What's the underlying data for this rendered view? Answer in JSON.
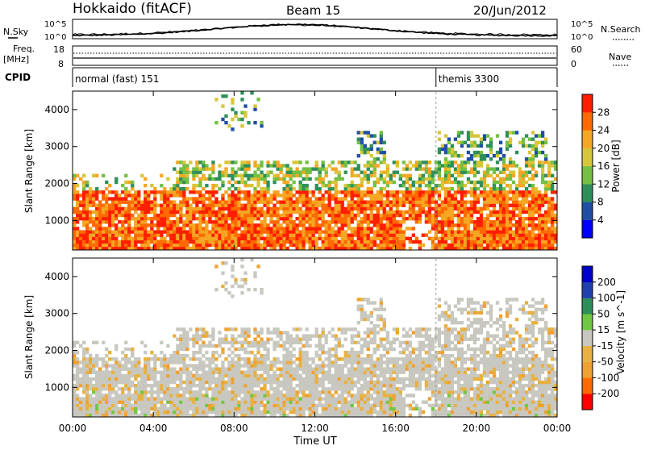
{
  "header": {
    "station": "Hokkaido (fitACF)",
    "beam": "Beam 15",
    "date": "20/Jun/2012"
  },
  "side_labels": {
    "nsky": "N.Sky",
    "freq": "Freq.",
    "freq_unit": "[MHz]",
    "cpid": "CPID",
    "nsearch": "N.Search",
    "nave": "Nave"
  },
  "nsky_axis": {
    "top": "10^5",
    "bottom": "10^0"
  },
  "freq_axis": {
    "top": "18",
    "bottom": "8"
  },
  "nave_axis": {
    "top": "60",
    "bottom": "0"
  },
  "cpid": [
    {
      "label": "normal (fast) 151",
      "start_hour": 0
    },
    {
      "label": "themis 3300",
      "start_hour": 18
    }
  ],
  "chart_data": [
    {
      "type": "heatmap",
      "name": "power",
      "ylabel": "Slant Range [km]",
      "yticks": [
        "1000",
        "2000",
        "3000",
        "4000"
      ],
      "ylim": [
        200,
        4500
      ],
      "colorbar_label": "Power [dB]",
      "colorbar_ticks": [
        "4",
        "8",
        "12",
        "16",
        "20",
        "24",
        "28"
      ],
      "colorbar_range": [
        0,
        32
      ],
      "colors": [
        "#0000ff",
        "#1f4ea6",
        "#2f8f5a",
        "#73c043",
        "#d8c63a",
        "#f5a623",
        "#ff6a00",
        "#ff1e00"
      ]
    },
    {
      "type": "heatmap",
      "name": "velocity",
      "ylabel": "Slant Range [km]",
      "yticks": [
        "1000",
        "2000",
        "3000",
        "4000"
      ],
      "ylim": [
        200,
        4500
      ],
      "xlabel": "Time UT",
      "colorbar_label": "Velocity [m s^-1]",
      "colorbar_ticks": [
        "-200",
        "-100",
        "-50",
        "-15",
        "15",
        "50",
        "100",
        "200"
      ],
      "colorbar_range": [
        -250,
        250
      ],
      "colors": [
        "#ff0000",
        "#ff6a00",
        "#f0a030",
        "#e8b040",
        "#c8c8c0",
        "#70c840",
        "#2f8f5a",
        "#2040b0",
        "#0000cc"
      ]
    }
  ],
  "time_axis": {
    "ticks": [
      "00:00",
      "04:00",
      "08:00",
      "12:00",
      "16:00",
      "20:00",
      "00:00"
    ],
    "label": "Time UT",
    "range_hours": [
      0,
      24
    ]
  }
}
